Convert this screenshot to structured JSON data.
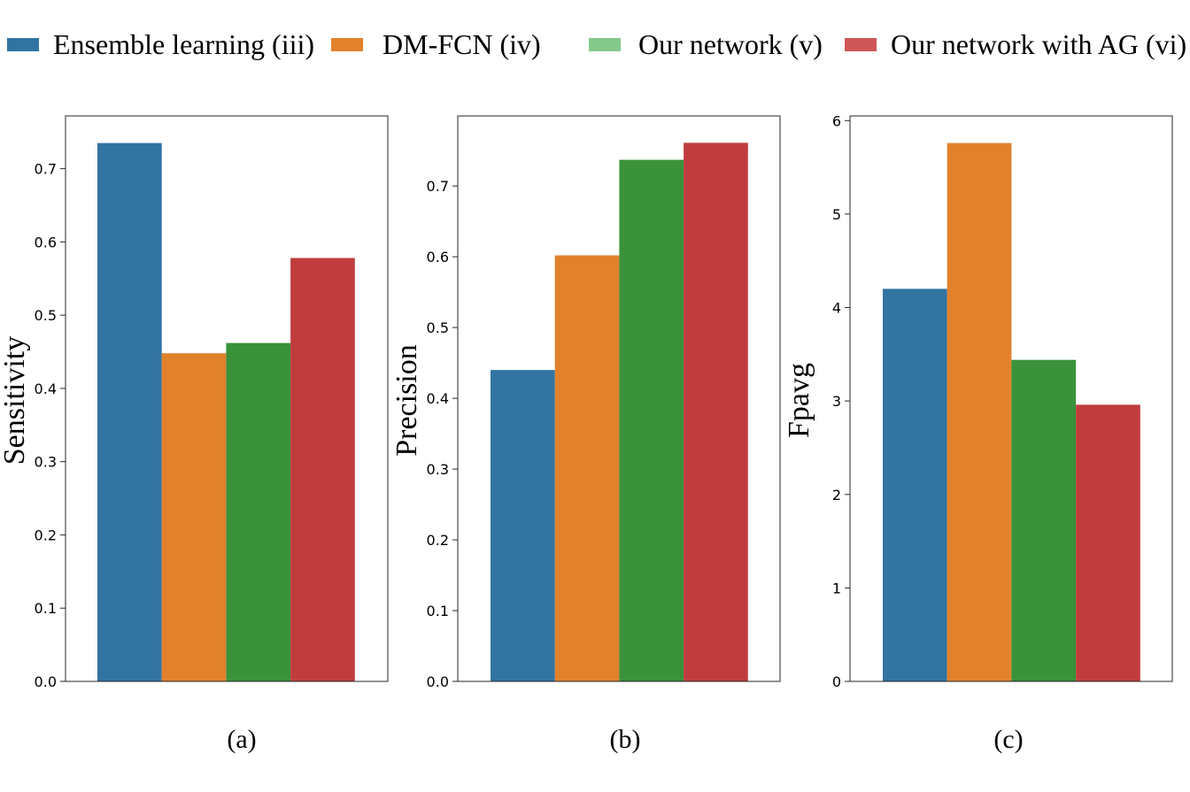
{
  "legend": {
    "items": [
      {
        "label": "Ensemble learning (iii)",
        "color": "#3274a1"
      },
      {
        "label": "DM-FCN (iv)",
        "color": "#e1812c"
      },
      {
        "label": "Our network (v)",
        "color": "#84c98b"
      },
      {
        "label": "Our network with AG (vi)",
        "color": "#d05757"
      }
    ]
  },
  "colors": {
    "bars": [
      "#3274a1",
      "#e1812c",
      "#3a923a",
      "#c03d3e"
    ]
  },
  "chart_data": [
    {
      "type": "bar",
      "caption": "(a)",
      "ylabel": "Sensitivity",
      "xlabel": "",
      "series": [
        {
          "name": "Ensemble learning (iii)",
          "values": [
            0.735
          ]
        },
        {
          "name": "DM-FCN (iv)",
          "values": [
            0.448
          ]
        },
        {
          "name": "Our network (v)",
          "values": [
            0.462
          ]
        },
        {
          "name": "Our network with AG (vi)",
          "values": [
            0.578
          ]
        }
      ],
      "ylim": [
        0,
        0.772
      ],
      "yticks": [
        0.0,
        0.1,
        0.2,
        0.3,
        0.4,
        0.5,
        0.6,
        0.7
      ],
      "ytick_labels": [
        "0.0",
        "0.1",
        "0.2",
        "0.3",
        "0.4",
        "0.5",
        "0.6",
        "0.7"
      ]
    },
    {
      "type": "bar",
      "caption": "(b)",
      "ylabel": "Precision",
      "xlabel": "",
      "series": [
        {
          "name": "Ensemble learning (iii)",
          "values": [
            0.44
          ]
        },
        {
          "name": "DM-FCN (iv)",
          "values": [
            0.602
          ]
        },
        {
          "name": "Our network (v)",
          "values": [
            0.737
          ]
        },
        {
          "name": "Our network with AG (vi)",
          "values": [
            0.761
          ]
        }
      ],
      "ylim": [
        0,
        0.799
      ],
      "yticks": [
        0.0,
        0.1,
        0.2,
        0.3,
        0.4,
        0.5,
        0.6,
        0.7
      ],
      "ytick_labels": [
        "0.0",
        "0.1",
        "0.2",
        "0.3",
        "0.4",
        "0.5",
        "0.6",
        "0.7"
      ]
    },
    {
      "type": "bar",
      "caption": "(c)",
      "ylabel": "Fpavg",
      "xlabel": "",
      "series": [
        {
          "name": "Ensemble learning (iii)",
          "values": [
            4.2
          ]
        },
        {
          "name": "DM-FCN (iv)",
          "values": [
            5.76
          ]
        },
        {
          "name": "Our network (v)",
          "values": [
            3.44
          ]
        },
        {
          "name": "Our network with AG (vi)",
          "values": [
            2.96
          ]
        }
      ],
      "ylim": [
        0,
        6.05
      ],
      "yticks": [
        0,
        1,
        2,
        3,
        4,
        5,
        6
      ],
      "ytick_labels": [
        "0",
        "1",
        "2",
        "3",
        "4",
        "5",
        "6"
      ]
    }
  ]
}
